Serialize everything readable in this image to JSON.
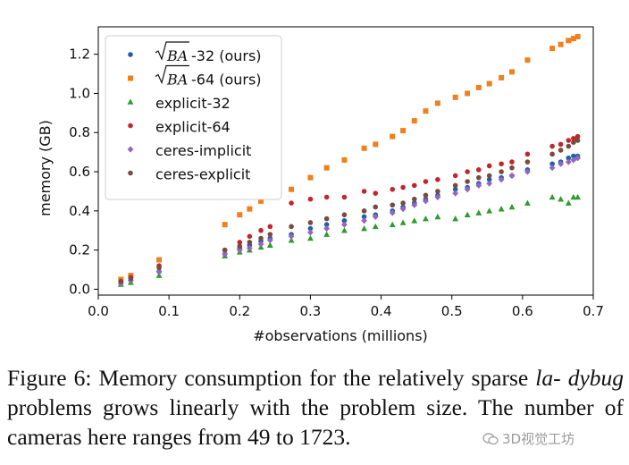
{
  "chart_data": {
    "type": "scatter",
    "title": "",
    "xlabel": "#observations (millions)",
    "ylabel": "memory (GB)",
    "xlim": [
      0.0,
      0.7
    ],
    "ylim": [
      -0.03,
      1.34
    ],
    "xticks": [
      "0.0",
      "0.1",
      "0.2",
      "0.3",
      "0.4",
      "0.5",
      "0.6",
      "0.7"
    ],
    "yticks": [
      "0.0",
      "0.2",
      "0.4",
      "0.6",
      "0.8",
      "1.0",
      "1.2"
    ],
    "xtick_values": [
      0.0,
      0.1,
      0.2,
      0.3,
      0.4,
      0.5,
      0.6,
      0.7
    ],
    "ytick_values": [
      0.0,
      0.2,
      0.4,
      0.6,
      0.8,
      1.0,
      1.2
    ],
    "grid": false,
    "legend_position": "top-left",
    "x": [
      0.032,
      0.046,
      0.086,
      0.179,
      0.2,
      0.214,
      0.23,
      0.243,
      0.273,
      0.3,
      0.323,
      0.348,
      0.376,
      0.392,
      0.416,
      0.431,
      0.447,
      0.463,
      0.48,
      0.505,
      0.522,
      0.538,
      0.553,
      0.57,
      0.585,
      0.607,
      0.642,
      0.654,
      0.665,
      0.672,
      0.678
    ],
    "series": [
      {
        "name": "BA-32 (ours)",
        "label_rest": "-32 (ours)",
        "marker": "circle",
        "color": "#1f5fa8",
        "values": [
          0.03,
          0.045,
          0.09,
          0.18,
          0.21,
          0.225,
          0.245,
          0.26,
          0.28,
          0.31,
          0.33,
          0.35,
          0.37,
          0.38,
          0.4,
          0.42,
          0.44,
          0.46,
          0.48,
          0.51,
          0.52,
          0.54,
          0.56,
          0.57,
          0.58,
          0.61,
          0.64,
          0.65,
          0.67,
          0.68,
          0.68
        ]
      },
      {
        "name": "BA-64 (ours)",
        "label_rest": "-64 (ours)",
        "marker": "square",
        "color": "#f07f1c",
        "values": [
          0.05,
          0.07,
          0.15,
          0.33,
          0.38,
          0.41,
          0.45,
          0.48,
          0.51,
          0.57,
          0.62,
          0.66,
          0.72,
          0.74,
          0.78,
          0.81,
          0.86,
          0.91,
          0.95,
          0.98,
          1.0,
          1.03,
          1.05,
          1.08,
          1.11,
          1.17,
          1.23,
          1.25,
          1.27,
          1.28,
          1.29
        ]
      },
      {
        "name": "explicit-32",
        "marker": "triangle",
        "color": "#2e9b2e",
        "values": [
          0.025,
          0.035,
          0.07,
          0.17,
          0.19,
          0.2,
          0.215,
          0.225,
          0.25,
          0.26,
          0.28,
          0.3,
          0.31,
          0.32,
          0.33,
          0.34,
          0.35,
          0.36,
          0.37,
          0.36,
          0.38,
          0.39,
          0.4,
          0.41,
          0.42,
          0.44,
          0.47,
          0.46,
          0.44,
          0.47,
          0.47
        ]
      },
      {
        "name": "explicit-64",
        "marker": "circle",
        "color": "#c0262d",
        "values": [
          0.04,
          0.06,
          0.12,
          0.2,
          0.24,
          0.27,
          0.3,
          0.32,
          0.44,
          0.46,
          0.47,
          0.47,
          0.5,
          0.49,
          0.51,
          0.52,
          0.53,
          0.55,
          0.56,
          0.58,
          0.6,
          0.61,
          0.63,
          0.64,
          0.65,
          0.69,
          0.73,
          0.74,
          0.76,
          0.77,
          0.78
        ]
      },
      {
        "name": "ceres-implicit",
        "marker": "diamond",
        "color": "#9467bd",
        "values": [
          0.03,
          0.045,
          0.09,
          0.18,
          0.2,
          0.21,
          0.23,
          0.25,
          0.27,
          0.29,
          0.31,
          0.33,
          0.35,
          0.37,
          0.39,
          0.41,
          0.43,
          0.45,
          0.47,
          0.49,
          0.51,
          0.53,
          0.54,
          0.56,
          0.58,
          0.6,
          0.62,
          0.64,
          0.65,
          0.66,
          0.67
        ]
      },
      {
        "name": "ceres-explicit",
        "marker": "circle",
        "color": "#7b4a3a",
        "values": [
          0.04,
          0.055,
          0.11,
          0.2,
          0.22,
          0.24,
          0.26,
          0.28,
          0.32,
          0.34,
          0.36,
          0.38,
          0.4,
          0.42,
          0.43,
          0.44,
          0.46,
          0.48,
          0.5,
          0.53,
          0.55,
          0.57,
          0.58,
          0.6,
          0.62,
          0.65,
          0.69,
          0.71,
          0.73,
          0.75,
          0.76
        ]
      }
    ]
  },
  "caption": {
    "prefix": "Figure 6: Memory consumption for the relatively sparse ",
    "italic1": "la-",
    "line2_italic": "dybug",
    "line2_rest": " problems grows linearly with the problem size. The",
    "line3": "number of cameras here ranges from 49 to 1723."
  },
  "watermark": {
    "text": "3D视觉工坊"
  }
}
